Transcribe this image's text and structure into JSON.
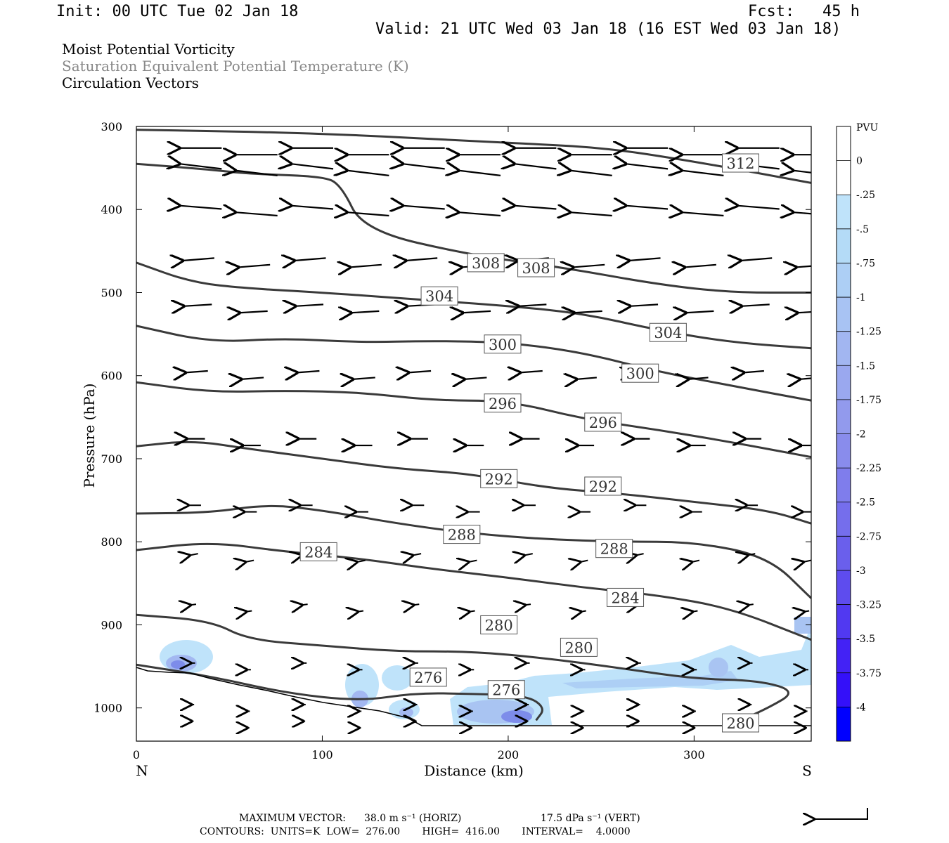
{
  "header": {
    "init": "Init: 00 UTC Tue 02 Jan 18",
    "fcst": "Fcst:   45 h",
    "valid": "Valid: 21 UTC Wed 03 Jan 18 (16 EST Wed 03 Jan 18)"
  },
  "titles": [
    "Moist Potential Vorticity",
    "Saturation Equivalent Potential Temperature (K)",
    "Circulation Vectors"
  ],
  "footer": {
    "max_vector_label": "MAXIMUM VECTOR:",
    "max_vector_horiz": "38.0 m s⁻¹ (HORIZ)",
    "max_vector_vert": "17.5 dPa s⁻¹ (VERT)",
    "contours": "CONTOURS:  UNITS=K  LOW=  276.00       HIGH=  416.00       INTERVAL=    4.0000"
  },
  "colors": {
    "contour": "#3a3a3a",
    "arrow": "#000000",
    "pv_light": "#bfe3fa",
    "pv_mid": "#a9c4f2",
    "pv_dark": "#7d8cea",
    "pv_min": "#0000ff"
  },
  "chart_data": {
    "type": "contour",
    "xlabel": "Distance (km)",
    "ylabel": "Pressure (hPa)",
    "xlim": [
      0,
      363
    ],
    "ylim": [
      1040,
      300
    ],
    "x_ticks": [
      0,
      100,
      200,
      300
    ],
    "y_ticks": [
      300,
      400,
      500,
      600,
      700,
      800,
      900,
      1000
    ],
    "x_end_labels": {
      "left": "N",
      "right": "S"
    },
    "colorbar": {
      "label": "PVU",
      "levels": [
        "0",
        "-.25",
        "-.5",
        "-.75",
        "-1",
        "-1.25",
        "-1.5",
        "-1.75",
        "-2",
        "-2.25",
        "-2.5",
        "-2.75",
        "-3",
        "-3.25",
        "-3.5",
        "-3.75",
        "-4"
      ],
      "colors": [
        "#ffffff",
        "#ffffff",
        "#bfe3fa",
        "#b4dbf7",
        "#adcff5",
        "#a8c3f3",
        "#a2b6f1",
        "#9aa8ef",
        "#929aed",
        "#898cec",
        "#7f7dec",
        "#756eec",
        "#6a5fec",
        "#5e4cee",
        "#5139f1",
        "#4322f5",
        "#3410f9",
        "#0000ff"
      ]
    },
    "theta_e_contours": [
      {
        "label": "312",
        "points": [
          [
            0,
            304
          ],
          [
            100,
            308
          ],
          [
            200,
            320
          ],
          [
            250,
            325
          ],
          [
            300,
            342
          ],
          [
            363,
            368
          ]
        ],
        "label_at": [
          [
            325,
            344
          ]
        ]
      },
      {
        "label": "308",
        "points": [
          [
            0,
            345
          ],
          [
            40,
            352
          ],
          [
            60,
            357
          ],
          [
            100,
            360
          ],
          [
            110,
            370
          ],
          [
            122,
            425
          ],
          [
            180,
            455
          ],
          [
            230,
            470
          ],
          [
            280,
            490
          ],
          [
            320,
            500
          ],
          [
            363,
            500
          ]
        ],
        "label_at": [
          [
            188,
            464
          ],
          [
            215,
            470
          ]
        ]
      },
      {
        "label": "304",
        "points": [
          [
            0,
            464
          ],
          [
            30,
            488
          ],
          [
            60,
            495
          ],
          [
            100,
            500
          ],
          [
            150,
            508
          ],
          [
            200,
            516
          ],
          [
            240,
            525
          ],
          [
            280,
            545
          ],
          [
            320,
            560
          ],
          [
            363,
            567
          ]
        ],
        "label_at": [
          [
            163,
            504
          ],
          [
            286,
            548
          ]
        ]
      },
      {
        "label": "300",
        "points": [
          [
            0,
            540
          ],
          [
            40,
            560
          ],
          [
            80,
            555
          ],
          [
            120,
            560
          ],
          [
            160,
            558
          ],
          [
            200,
            560
          ],
          [
            240,
            572
          ],
          [
            280,
            595
          ],
          [
            320,
            612
          ],
          [
            363,
            630
          ]
        ],
        "label_at": [
          [
            197,
            562
          ],
          [
            271,
            597
          ]
        ]
      },
      {
        "label": "296",
        "points": [
          [
            0,
            608
          ],
          [
            40,
            620
          ],
          [
            80,
            618
          ],
          [
            120,
            620
          ],
          [
            160,
            630
          ],
          [
            200,
            630
          ],
          [
            240,
            652
          ],
          [
            280,
            665
          ],
          [
            320,
            680
          ],
          [
            363,
            698
          ]
        ],
        "label_at": [
          [
            197,
            633
          ],
          [
            251,
            656
          ]
        ]
      },
      {
        "label": "292",
        "points": [
          [
            0,
            685
          ],
          [
            30,
            678
          ],
          [
            60,
            688
          ],
          [
            100,
            700
          ],
          [
            140,
            712
          ],
          [
            180,
            718
          ],
          [
            220,
            735
          ],
          [
            260,
            742
          ],
          [
            300,
            752
          ],
          [
            340,
            762
          ],
          [
            363,
            778
          ]
        ],
        "label_at": [
          [
            195,
            724
          ],
          [
            251,
            733
          ]
        ]
      },
      {
        "label": "288",
        "points": [
          [
            0,
            766
          ],
          [
            40,
            765
          ],
          [
            70,
            755
          ],
          [
            100,
            762
          ],
          [
            140,
            778
          ],
          [
            180,
            790
          ],
          [
            220,
            797
          ],
          [
            260,
            800
          ],
          [
            300,
            800
          ],
          [
            340,
            818
          ],
          [
            363,
            868
          ]
        ],
        "label_at": [
          [
            175,
            791
          ],
          [
            257,
            808
          ]
        ]
      },
      {
        "label": "284",
        "points": [
          [
            0,
            810
          ],
          [
            40,
            800
          ],
          [
            80,
            812
          ],
          [
            120,
            820
          ],
          [
            160,
            833
          ],
          [
            200,
            843
          ],
          [
            240,
            855
          ],
          [
            280,
            864
          ],
          [
            320,
            880
          ],
          [
            363,
            918
          ]
        ],
        "label_at": [
          [
            98,
            812
          ],
          [
            263,
            867
          ]
        ]
      },
      {
        "label": "280",
        "points": [
          [
            0,
            888
          ],
          [
            40,
            895
          ],
          [
            60,
            918
          ],
          [
            100,
            925
          ],
          [
            140,
            932
          ],
          [
            180,
            932
          ],
          [
            220,
            940
          ],
          [
            260,
            952
          ],
          [
            300,
            965
          ],
          [
            335,
            967
          ],
          [
            355,
            980
          ],
          [
            340,
            1000
          ],
          [
            320,
            1020
          ]
        ],
        "label_at": [
          [
            195,
            900
          ],
          [
            238,
            927
          ],
          [
            325,
            1018
          ]
        ]
      },
      {
        "label": "276",
        "points": [
          [
            0,
            948
          ],
          [
            40,
            962
          ],
          [
            80,
            982
          ],
          [
            120,
            992
          ],
          [
            150,
            982
          ],
          [
            180,
            983
          ],
          [
            210,
            985
          ],
          [
            220,
            1000
          ],
          [
            215,
            1015
          ]
        ],
        "label_at": [
          [
            157,
            963
          ],
          [
            199,
            978
          ]
        ]
      }
    ]
  }
}
